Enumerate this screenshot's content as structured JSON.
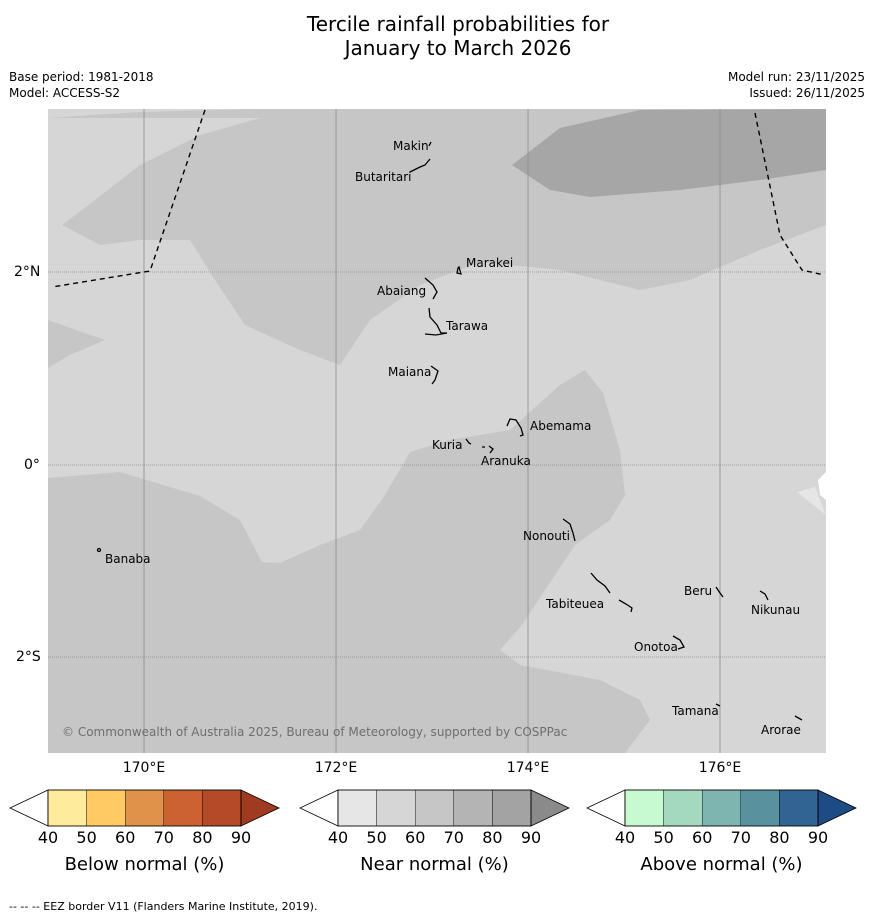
{
  "title_line1": "Tercile rainfall probabilities for",
  "title_line2": "January to March 2026",
  "base_period": "Base period: 1981-2018",
  "model": "Model: ACCESS-S2",
  "model_run": "Model run: 23/11/2025",
  "issued": "Issued: 26/11/2025",
  "copyright": "© Commonwealth of Australia 2025, Bureau of Meteorology, supported by COSPPac",
  "footer": "-- -- -- EEZ border V11 (Flanders Marine Institute, 2019).",
  "lat_labels": [
    "2°N",
    "0°",
    "2°S"
  ],
  "lon_labels": [
    "170°E",
    "172°E",
    "174°E",
    "176°E"
  ],
  "islands": [
    "Makin",
    "Butaritari",
    "Marakei",
    "Abaiang",
    "Tarawa",
    "Maiana",
    "Abemama",
    "Kuria",
    "Aranuka",
    "Nonouti",
    "Banaba",
    "Beru",
    "Tabiteuea",
    "Nikunau",
    "Onotoa",
    "Tamana",
    "Arorae"
  ],
  "colorbars": [
    {
      "label": "Below normal (%)",
      "ticks": [
        "40",
        "50",
        "60",
        "70",
        "80",
        "90"
      ],
      "colors": [
        "#ffffff",
        "#ffeb9b",
        "#ffca64",
        "#e1924a",
        "#cc6232",
        "#b44a28",
        "#a03b22"
      ]
    },
    {
      "label": "Near normal (%)",
      "ticks": [
        "40",
        "50",
        "60",
        "70",
        "80",
        "90"
      ],
      "colors": [
        "#ffffff",
        "#e6e6e6",
        "#d6d6d6",
        "#c6c6c6",
        "#b4b4b4",
        "#a3a3a3",
        "#8a8a8a"
      ]
    },
    {
      "label": "Above normal (%)",
      "ticks": [
        "40",
        "50",
        "60",
        "70",
        "80",
        "90"
      ],
      "colors": [
        "#ffffff",
        "#c8fad2",
        "#a4d8bf",
        "#7fb5b1",
        "#5a919f",
        "#326493",
        "#1e4a85"
      ]
    }
  ]
}
